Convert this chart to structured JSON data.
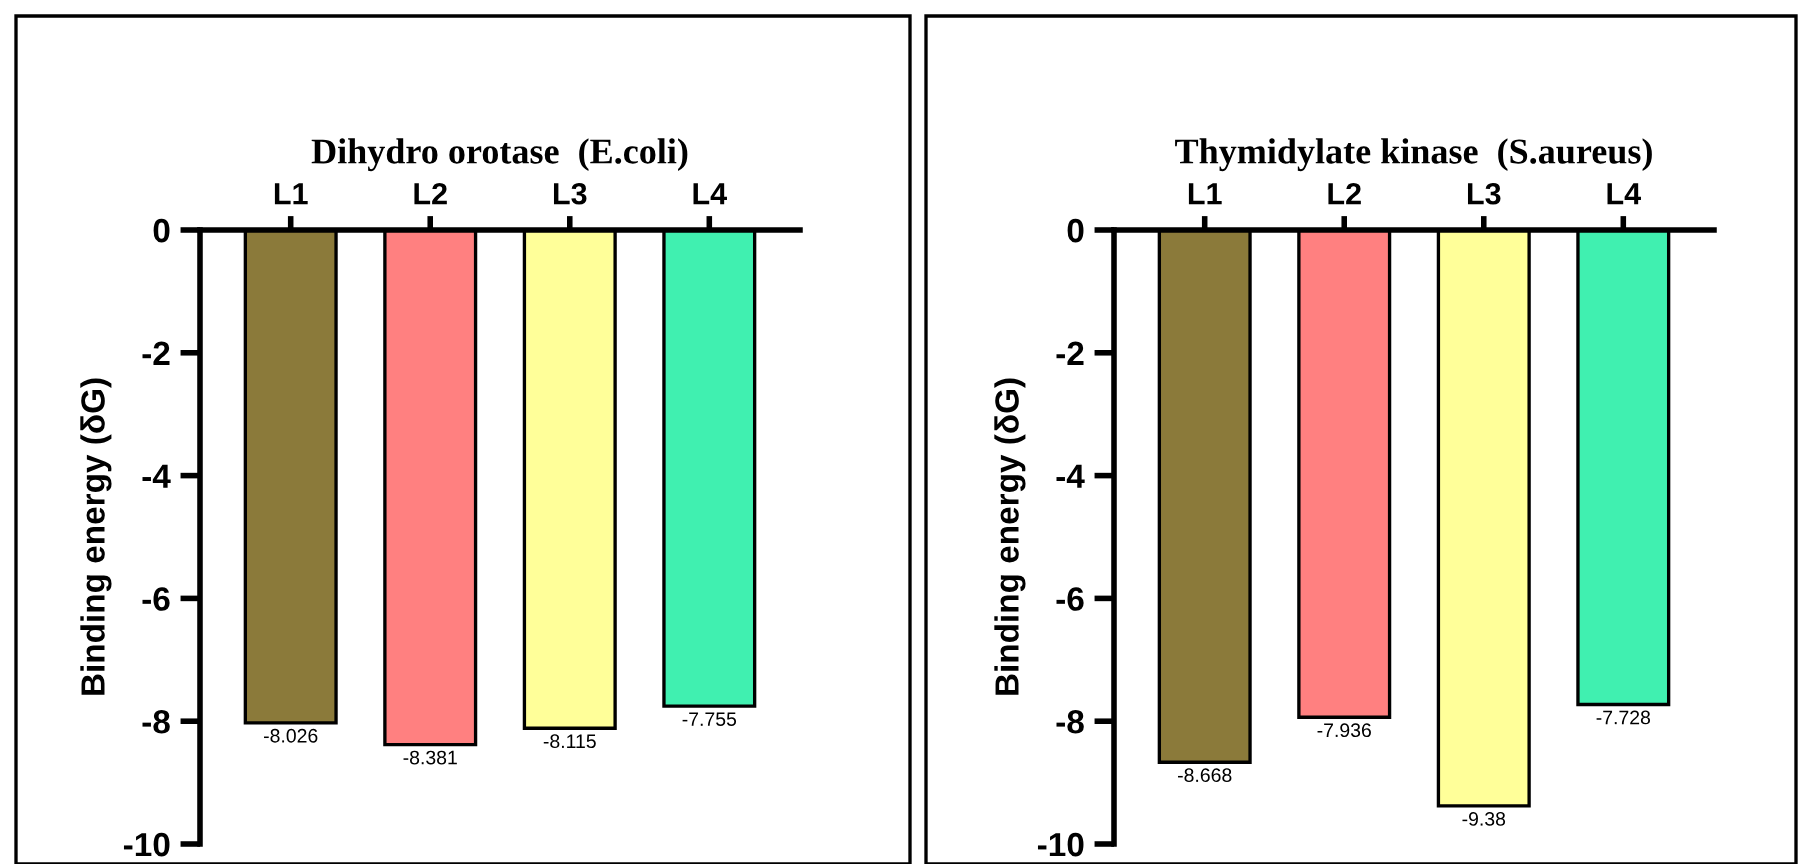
{
  "chart_data": [
    {
      "type": "bar",
      "title": "Dihydro orotase  (E.coli)",
      "ylabel": "Binding energy (δG)",
      "categories": [
        "L1",
        "L2",
        "L3",
        "L4"
      ],
      "values": [
        -8.026,
        -8.381,
        -8.115,
        -7.755
      ],
      "colors": [
        "#8b7a3a",
        "#ff8080",
        "#ffff99",
        "#40f0b0"
      ],
      "ylim": [
        -10,
        0
      ],
      "yticks": [
        -10,
        -8,
        -6,
        -4,
        -2,
        0
      ],
      "data_labels": true,
      "grid": false,
      "legend": false
    },
    {
      "type": "bar",
      "title": "Thymidylate kinase  (S.aureus)",
      "ylabel": "Binding energy (δG)",
      "categories": [
        "L1",
        "L2",
        "L3",
        "L4"
      ],
      "values": [
        -8.668,
        -7.936,
        -9.38,
        -7.728
      ],
      "colors": [
        "#8b7a3a",
        "#ff8080",
        "#ffff99",
        "#40f0b0"
      ],
      "ylim": [
        -10,
        0
      ],
      "yticks": [
        -10,
        -8,
        -6,
        -4,
        -2,
        0
      ],
      "data_labels": true,
      "grid": false,
      "legend": false
    }
  ]
}
